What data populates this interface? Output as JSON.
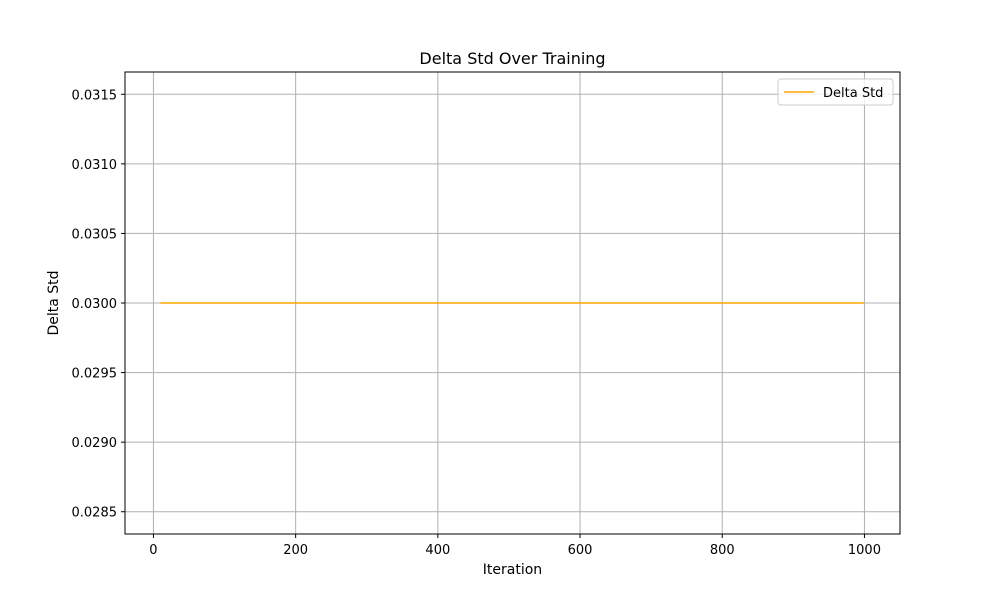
{
  "chart_data": {
    "type": "line",
    "title": "Delta Std Over Training",
    "xlabel": "Iteration",
    "ylabel": "Delta Std",
    "xlim": [
      -40,
      1050
    ],
    "ylim": [
      0.02834,
      0.03166
    ],
    "x_ticks": [
      0,
      200,
      400,
      600,
      800,
      1000
    ],
    "y_ticks": [
      0.0285,
      0.029,
      0.0295,
      0.03,
      0.0305,
      0.031,
      0.0315
    ],
    "x_tick_labels": [
      "0",
      "200",
      "400",
      "600",
      "800",
      "1000"
    ],
    "y_tick_labels": [
      "0.0285",
      "0.0290",
      "0.0295",
      "0.0300",
      "0.0305",
      "0.0310",
      "0.0315"
    ],
    "grid": true,
    "legend_position": "upper right",
    "series": [
      {
        "name": "Delta Std",
        "color": "#ffa500",
        "x": [
          10,
          1000
        ],
        "y": [
          0.03,
          0.03
        ]
      }
    ]
  }
}
